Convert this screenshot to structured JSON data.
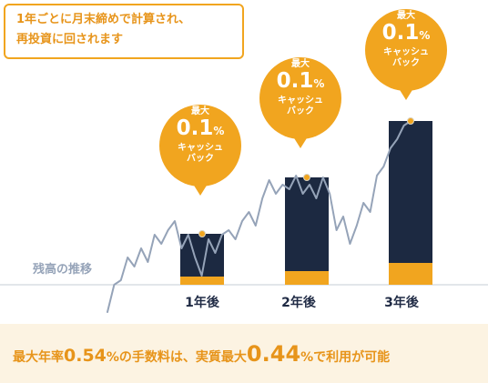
{
  "note": {
    "line1": "1年ごとに月末締めで計算され、",
    "line2": "再投資に回されます"
  },
  "balance_label": "残高の推移",
  "bubbles": [
    {
      "max": "最大",
      "value": "0.1",
      "unit": "%",
      "line1": "キャッシュ",
      "line2": "バック"
    },
    {
      "max": "最大",
      "value": "0.1",
      "unit": "%",
      "line1": "キャッシュ",
      "line2": "バック"
    },
    {
      "max": "最大",
      "value": "0.1",
      "unit": "%",
      "line1": "キャッシュ",
      "line2": "バック"
    }
  ],
  "footer": {
    "part1": "最大年率",
    "rate1": "0.54",
    "part2": "%の手数料は、実質最大",
    "rate2": "0.44",
    "part3": "%で利用が可能"
  },
  "colors": {
    "accent": "#f1a51f",
    "bar_dark": "#1c2941",
    "line": "#95a3b8",
    "band": "#fcf3e2"
  },
  "chart_data": {
    "type": "bar",
    "categories": [
      "1年後",
      "2年後",
      "3年後"
    ],
    "values": [
      56,
      118,
      180
    ],
    "segments": {
      "cashback": [
        9,
        15,
        24
      ],
      "balance": [
        47,
        103,
        156
      ]
    },
    "line": {
      "name": "残高の推移",
      "values": [
        -30,
        0,
        5,
        30,
        20,
        40,
        25,
        55,
        45,
        60,
        70,
        40,
        55,
        30,
        10,
        50,
        35,
        55,
        60,
        50,
        70,
        80,
        65,
        95,
        115,
        100,
        110,
        105,
        120,
        100,
        110,
        95,
        118,
        100,
        60,
        75,
        45,
        65,
        90,
        80,
        120,
        130,
        150,
        160,
        175,
        180
      ]
    },
    "ylim": [
      -40,
      200
    ],
    "title": "",
    "xlabel": "",
    "ylabel": ""
  }
}
